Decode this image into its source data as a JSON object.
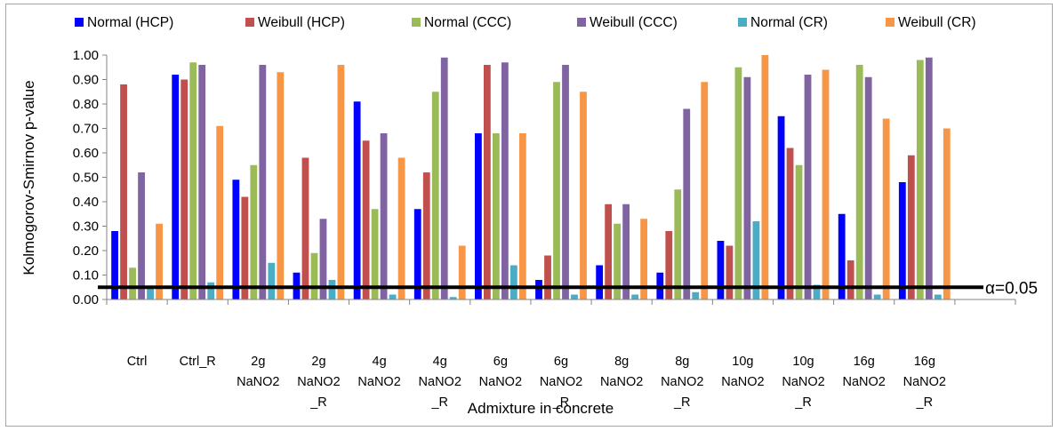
{
  "chart_data": {
    "type": "bar",
    "xlabel": "Admixture in concrete",
    "ylabel": "Kolmogorov-Smirnov p-value",
    "ylim": [
      0,
      1.0
    ],
    "yticks": [
      "0.00",
      "0.10",
      "0.20",
      "0.30",
      "0.40",
      "0.50",
      "0.60",
      "0.70",
      "0.80",
      "0.90",
      "1.00"
    ],
    "grid": false,
    "legend_position": "top",
    "categories": [
      [
        "Ctrl"
      ],
      [
        "Ctrl_R"
      ],
      [
        "2g",
        "NaNO2"
      ],
      [
        "2g",
        "NaNO2",
        "_R"
      ],
      [
        "4g",
        "NaNO2"
      ],
      [
        "4g",
        "NaNO2",
        "_R"
      ],
      [
        "6g",
        "NaNO2"
      ],
      [
        "6g",
        "NaNO2",
        "_R"
      ],
      [
        "8g",
        "NaNO2"
      ],
      [
        "8g",
        "NaNO2",
        "_R"
      ],
      [
        "10g",
        "NaNO2"
      ],
      [
        "10g",
        "NaNO2",
        "_R"
      ],
      [
        "16g",
        "NaNO2"
      ],
      [
        "16g",
        "NaNO2",
        "_R"
      ]
    ],
    "series": [
      {
        "name": "Normal (HCP)",
        "color": "#0000ff",
        "values": [
          0.28,
          0.92,
          0.49,
          0.11,
          0.81,
          0.37,
          0.68,
          0.08,
          0.14,
          0.11,
          0.24,
          0.75,
          0.35,
          0.48
        ]
      },
      {
        "name": "Weibull (HCP)",
        "color": "#c0504d",
        "values": [
          0.88,
          0.9,
          0.42,
          0.58,
          0.65,
          0.52,
          0.96,
          0.18,
          0.39,
          0.28,
          0.22,
          0.62,
          0.16,
          0.59
        ]
      },
      {
        "name": "Normal (CCC)",
        "color": "#9bbb59",
        "values": [
          0.13,
          0.97,
          0.55,
          0.19,
          0.37,
          0.85,
          0.68,
          0.89,
          0.31,
          0.45,
          0.95,
          0.55,
          0.96,
          0.98
        ]
      },
      {
        "name": "Weibull (CCC)",
        "color": "#8064a2",
        "values": [
          0.52,
          0.96,
          0.96,
          0.33,
          0.68,
          0.99,
          0.97,
          0.96,
          0.39,
          0.78,
          0.91,
          0.92,
          0.91,
          0.99
        ]
      },
      {
        "name": "Normal (CR)",
        "color": "#4bacc6",
        "values": [
          0.05,
          0.07,
          0.15,
          0.08,
          0.02,
          0.01,
          0.14,
          0.02,
          0.02,
          0.03,
          0.32,
          0.06,
          0.02,
          0.02
        ]
      },
      {
        "name": "Weibull (CR)",
        "color": "#f79646",
        "values": [
          0.31,
          0.71,
          0.93,
          0.96,
          0.58,
          0.22,
          0.68,
          0.85,
          0.33,
          0.89,
          1.0,
          0.94,
          0.74,
          0.7
        ]
      }
    ],
    "reference_line": {
      "value": 0.05,
      "label": "α=0.05",
      "color": "#000000"
    }
  }
}
